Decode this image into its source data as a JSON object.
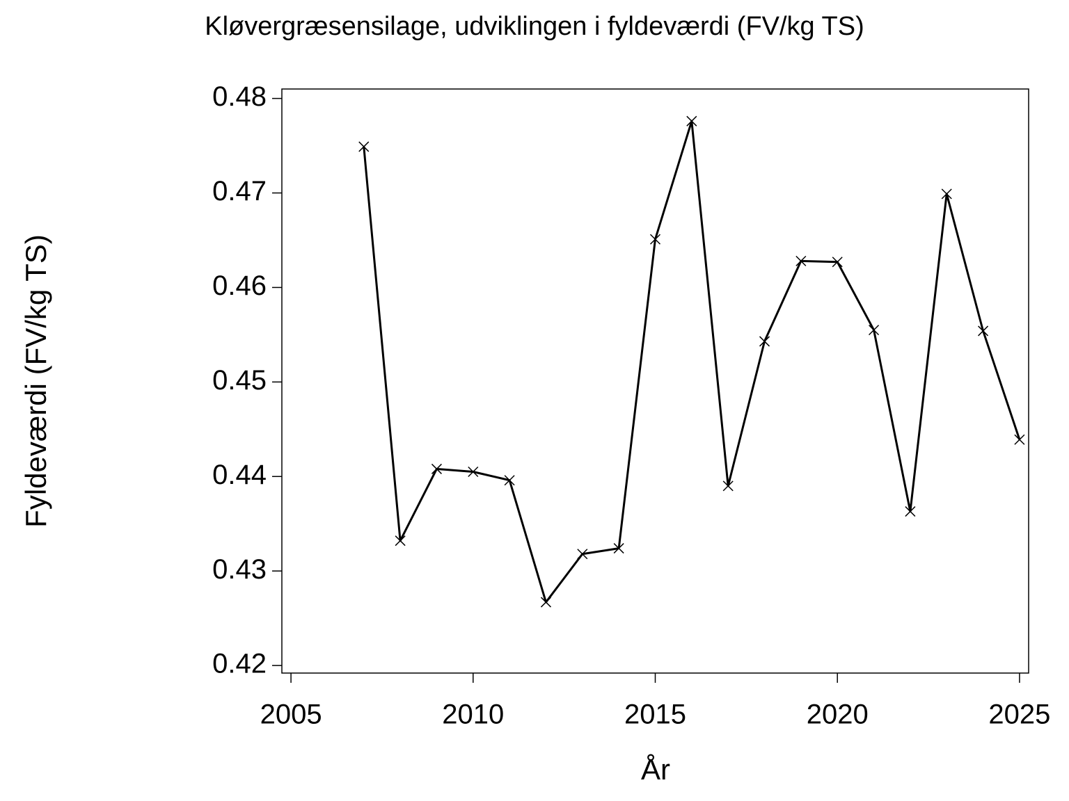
{
  "chart_data": {
    "type": "line",
    "title": "Kløvergræsensilage, udviklingen i fyldeværdi (FV/kg TS)",
    "x_label": "År",
    "y_label": "Fyldeværdi (FV/kg TS)",
    "x": [
      2007,
      2008,
      2009,
      2010,
      2011,
      2012,
      2013,
      2014,
      2015,
      2016,
      2017,
      2018,
      2019,
      2020,
      2021,
      2022,
      2023,
      2024,
      2025
    ],
    "series": [
      {
        "color": "#000000",
        "marker": "x",
        "values": [
          0.4749,
          0.4332,
          0.4408,
          0.4405,
          0.4396,
          0.4267,
          0.4318,
          0.4324,
          0.4651,
          0.4776,
          0.439,
          0.4543,
          0.4628,
          0.4627,
          0.4555,
          0.4363,
          0.4699,
          0.4554,
          0.4439
        ]
      }
    ],
    "xlim": [
      2004.75,
      2025.25
    ],
    "ylim": [
      0.4192,
      0.481
    ],
    "xticks": [
      2005,
      2010,
      2015,
      2020,
      2025
    ],
    "yticks": [
      0.42,
      0.43,
      0.44,
      0.45,
      0.46,
      0.47,
      0.48
    ]
  }
}
